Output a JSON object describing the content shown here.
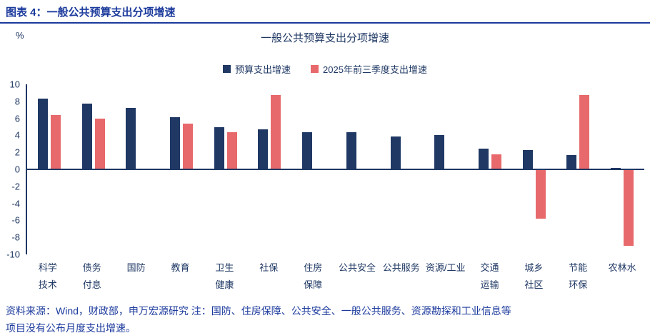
{
  "header": {
    "title": "图表 4：一般公共预算支出分项增速"
  },
  "chart": {
    "title": "一般公共预算支出分项增速",
    "unit": "%"
  },
  "legend": [
    {
      "label": "预算支出增速",
      "color": "#1f3864"
    },
    {
      "label": "2025年前三季度支出增速",
      "color": "#e8696b"
    }
  ],
  "footer": {
    "line1": "资料来源：Wind，财政部，申万宏源研究  注：国防、住房保障、公共安全、一般公共服务、资源勘探和工业信息等",
    "line2": "项目没有公布月度支出增速。"
  },
  "colors": {
    "navy": "#1f3864",
    "red": "#e8696b",
    "text_blue": "#1b3a9c"
  },
  "chart_data": {
    "type": "bar",
    "title": "一般公共预算支出分项增速",
    "xlabel": "",
    "ylabel": "%",
    "ylim": [
      -10,
      10
    ],
    "yticks": [
      10,
      8,
      6,
      4,
      2,
      0,
      -2,
      -4,
      -6,
      -8,
      -10
    ],
    "grid": false,
    "legend_position": "top-center",
    "categories": [
      "科学技术",
      "债务付息",
      "国防",
      "教育",
      "卫生健康",
      "社保",
      "住房保障",
      "公共安全",
      "公共服务",
      "资源/工业",
      "交通运输",
      "城乡社区",
      "节能环保",
      "农林水"
    ],
    "category_lines": [
      [
        "科学",
        "技术"
      ],
      [
        "债务",
        "付息"
      ],
      [
        "国防"
      ],
      [
        "教育"
      ],
      [
        "卫生",
        "健康"
      ],
      [
        "社保"
      ],
      [
        "住房",
        "保障"
      ],
      [
        "公共安全"
      ],
      [
        "公共服务"
      ],
      [
        "资源/工业"
      ],
      [
        "交通",
        "运输"
      ],
      [
        "城乡",
        "社区"
      ],
      [
        "节能",
        "环保"
      ],
      [
        "农林水"
      ]
    ],
    "series": [
      {
        "name": "预算支出增速",
        "color": "#1f3864",
        "values": [
          8.3,
          7.7,
          7.2,
          6.1,
          5.0,
          4.7,
          4.4,
          4.4,
          3.9,
          4.0,
          2.4,
          2.3,
          1.7,
          0.2
        ]
      },
      {
        "name": "2025年前三季度支出增速",
        "color": "#e8696b",
        "values": [
          6.4,
          6.0,
          null,
          5.4,
          4.4,
          8.7,
          null,
          null,
          null,
          null,
          1.8,
          -5.8,
          8.7,
          -9.0
        ]
      }
    ]
  }
}
